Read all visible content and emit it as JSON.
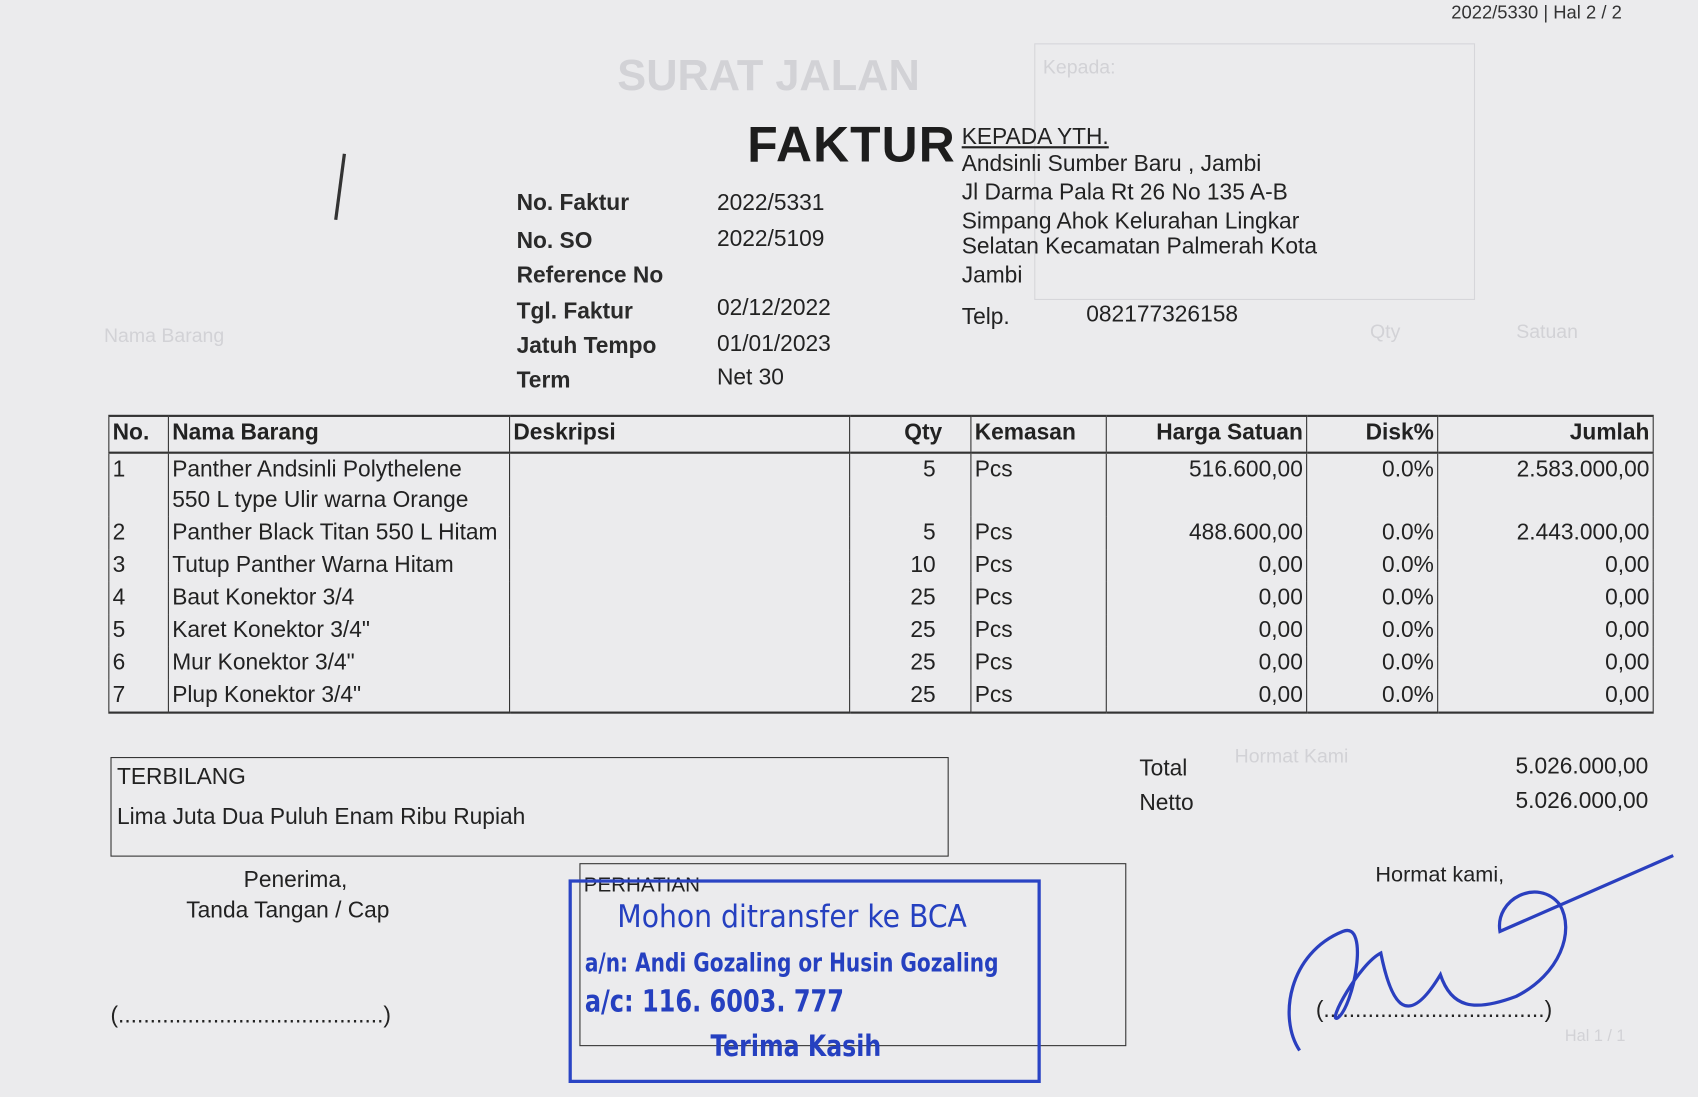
{
  "page_ref": "2022/5330 | Hal 2 / 2",
  "ghost": {
    "title": "SURAT JALAN",
    "kepada": "Kepada:",
    "nama_barang": "Nama Barang",
    "qty": "Qty",
    "satuan": "Satuan",
    "hal": "Hal 1 / 1",
    "hormat": "Hormat Kami"
  },
  "title": "FAKTUR",
  "meta": [
    {
      "label": "No. Faktur",
      "value": "2022/5331"
    },
    {
      "label": "No. SO",
      "value": "2022/5109"
    },
    {
      "label": "Reference No",
      "value": ""
    },
    {
      "label": "Tgl. Faktur",
      "value": "02/12/2022"
    },
    {
      "label": "Jatuh Tempo",
      "value": "01/01/2023"
    },
    {
      "label": "Term",
      "value": "Net 30"
    }
  ],
  "customer": {
    "heading": "KEPADA YTH.",
    "lines": [
      "Andsinli Sumber Baru , Jambi",
      "Jl Darma Pala Rt 26 No 135 A-B",
      "Simpang Ahok Kelurahan Lingkar",
      "Selatan Kecamatan Palmerah Kota",
      "Jambi"
    ],
    "phone_label": "Telp.",
    "phone": "082177326158"
  },
  "table": {
    "headers": [
      "No.",
      "Nama Barang",
      "Deskripsi",
      "Qty",
      "Kemasan",
      "Harga Satuan",
      "Disk%",
      "Jumlah"
    ],
    "rows": [
      {
        "no": "1",
        "nama": "Panther Andsinli Polythelene 550 L type Ulir warna Orange",
        "desk": "",
        "qty": "5",
        "kemasan": "Pcs",
        "harga": "516.600,00",
        "disk": "0.0%",
        "jumlah": "2.583.000,00"
      },
      {
        "no": "2",
        "nama": "Panther Black Titan 550 L Hitam",
        "desk": "",
        "qty": "5",
        "kemasan": "Pcs",
        "harga": "488.600,00",
        "disk": "0.0%",
        "jumlah": "2.443.000,00"
      },
      {
        "no": "3",
        "nama": "Tutup Panther Warna Hitam",
        "desk": "",
        "qty": "10",
        "kemasan": "Pcs",
        "harga": "0,00",
        "disk": "0.0%",
        "jumlah": "0,00"
      },
      {
        "no": "4",
        "nama": "Baut Konektor 3/4",
        "desk": "",
        "qty": "25",
        "kemasan": "Pcs",
        "harga": "0,00",
        "disk": "0.0%",
        "jumlah": "0,00"
      },
      {
        "no": "5",
        "nama": "Karet Konektor 3/4\"",
        "desk": "",
        "qty": "25",
        "kemasan": "Pcs",
        "harga": "0,00",
        "disk": "0.0%",
        "jumlah": "0,00"
      },
      {
        "no": "6",
        "nama": "Mur Konektor 3/4\"",
        "desk": "",
        "qty": "25",
        "kemasan": "Pcs",
        "harga": "0,00",
        "disk": "0.0%",
        "jumlah": "0,00"
      },
      {
        "no": "7",
        "nama": "Plup Konektor 3/4\"",
        "desk": "",
        "qty": "25",
        "kemasan": "Pcs",
        "harga": "0,00",
        "disk": "0.0%",
        "jumlah": "0,00"
      }
    ]
  },
  "terbilang": {
    "label": "TERBILANG",
    "text": "Lima Juta Dua Puluh Enam Ribu Rupiah"
  },
  "totals": {
    "total_label": "Total",
    "total": "5.026.000,00",
    "netto_label": "Netto",
    "netto": "5.026.000,00"
  },
  "penerima": {
    "line1": "Penerima,",
    "line2": "Tanda Tangan / Cap",
    "sign_line": "(..........................................)"
  },
  "perhatian": {
    "label": "PERHATIAN"
  },
  "stamp": {
    "line1": "Mohon ditransfer ke BCA",
    "line2": "a/n: Andi Gozaling or Husin Gozaling",
    "line3": "a/c: 116. 6003. 777",
    "line4": "Terima Kasih",
    "color": "#2540c0"
  },
  "hormat": {
    "label": "Hormat kami,",
    "sign_line": "(...................................)"
  },
  "signature_color": "#2a3fbf"
}
